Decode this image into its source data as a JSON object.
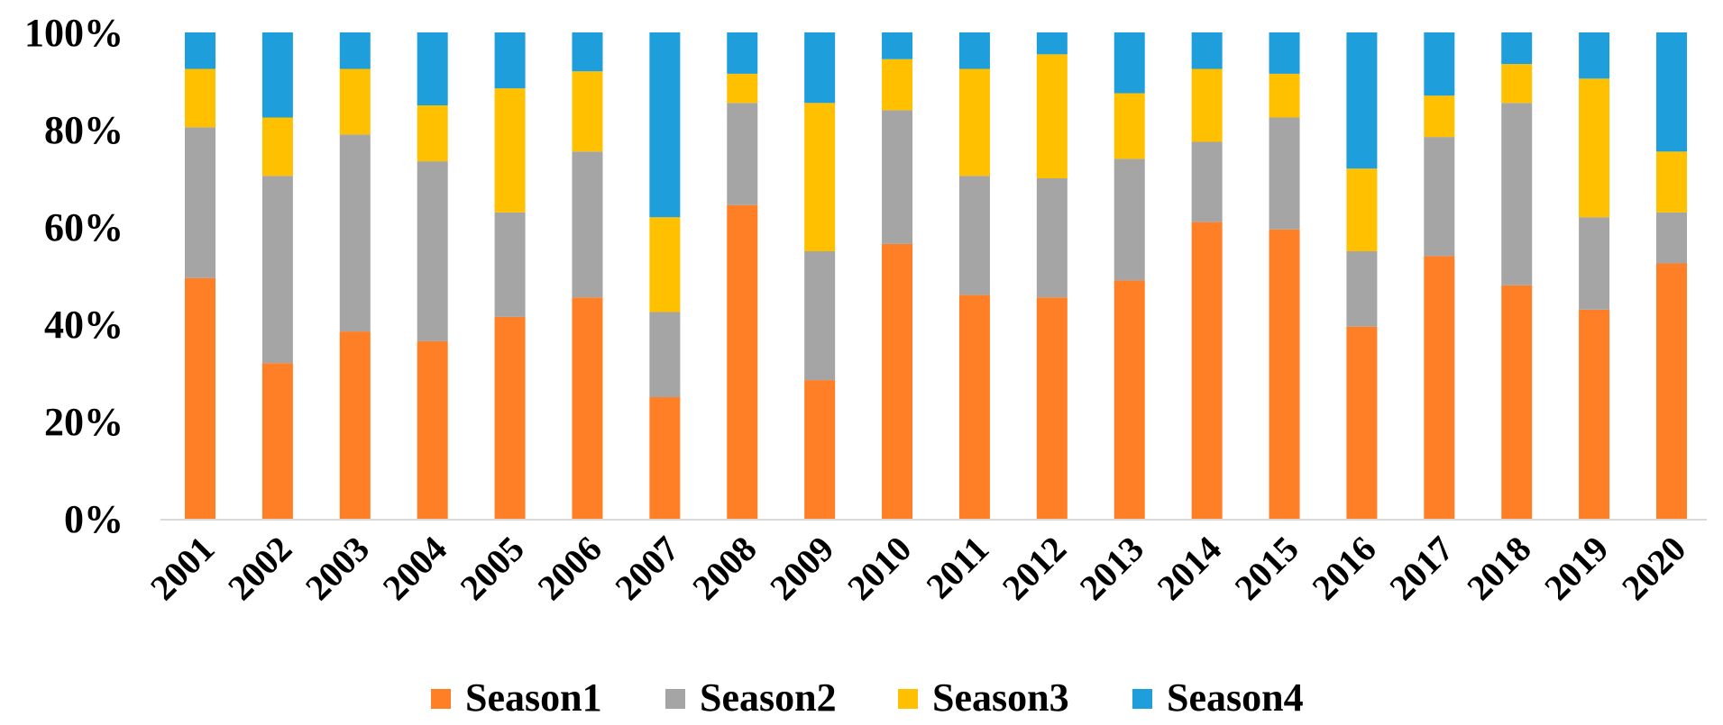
{
  "chart_data": {
    "type": "bar",
    "stacked": true,
    "normalized": true,
    "title": "",
    "xlabel": "",
    "ylabel": "",
    "ylim": [
      0,
      100
    ],
    "yticks": [
      {
        "value": 0,
        "label": "0%"
      },
      {
        "value": 20,
        "label": "20%"
      },
      {
        "value": 40,
        "label": "40%"
      },
      {
        "value": 60,
        "label": "60%"
      },
      {
        "value": 80,
        "label": "80%"
      },
      {
        "value": 100,
        "label": "100%"
      }
    ],
    "legend_position": "bottom",
    "grid": false,
    "categories": [
      "2001",
      "2002",
      "2003",
      "2004",
      "2005",
      "2006",
      "2007",
      "2008",
      "2009",
      "2010",
      "2011",
      "2012",
      "2013",
      "2014",
      "2015",
      "2016",
      "2017",
      "2018",
      "2019",
      "2020"
    ],
    "series": [
      {
        "name": "Season1",
        "color": "#FF7F27",
        "values": [
          49.5,
          32,
          38.5,
          36.5,
          41.5,
          45.5,
          25,
          64.5,
          28.5,
          56.5,
          46,
          45.5,
          49,
          61,
          59.5,
          39.5,
          54,
          48,
          43,
          52.5
        ]
      },
      {
        "name": "Season2",
        "color": "#A5A5A5",
        "values": [
          31,
          38.5,
          40.5,
          37,
          21.5,
          30,
          17.5,
          21,
          26.5,
          27.5,
          24.5,
          24.5,
          25,
          16.5,
          23,
          15.5,
          24.5,
          37.5,
          19,
          10.5
        ]
      },
      {
        "name": "Season3",
        "color": "#FFC000",
        "values": [
          12,
          12,
          13.5,
          11.5,
          25.5,
          16.5,
          19.5,
          6,
          30.5,
          10.5,
          22,
          25.5,
          13.5,
          15,
          9,
          17,
          8.5,
          8,
          28.5,
          12.5
        ]
      },
      {
        "name": "Season4",
        "color": "#1E9FDB",
        "values": [
          7.5,
          17.5,
          7.5,
          15,
          11.5,
          8,
          38,
          8.5,
          14.5,
          5.5,
          7.5,
          4.5,
          12.5,
          7.5,
          8.5,
          28,
          13,
          6.5,
          9.5,
          24.5
        ]
      }
    ]
  }
}
